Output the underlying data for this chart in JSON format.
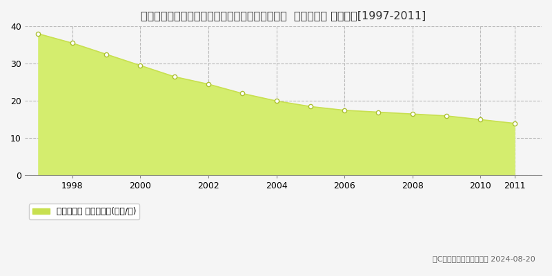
{
  "title": "埼玉県比企郡川島町大字伊草字上宿並１１番３外  基準地価格 地価推移[1997-2011]",
  "years": [
    1997,
    1998,
    1999,
    2000,
    2001,
    2002,
    2003,
    2004,
    2005,
    2006,
    2007,
    2008,
    2009,
    2010,
    2011
  ],
  "values": [
    38.0,
    35.5,
    32.5,
    29.5,
    26.5,
    24.5,
    22.0,
    20.0,
    18.5,
    17.5,
    17.0,
    16.5,
    16.0,
    15.0,
    14.0
  ],
  "ylim": [
    0,
    40
  ],
  "yticks": [
    0,
    10,
    20,
    30,
    40
  ],
  "fill_color": "#d4ed6e",
  "line_color": "#c8e050",
  "marker_facecolor": "#ffffff",
  "marker_edgecolor": "#aabf30",
  "bg_color": "#f5f5f5",
  "plot_bg_color": "#f5f5f5",
  "grid_color": "#bbbbbb",
  "legend_label": "基準地価格 平均坪単価(万円/坪)",
  "legend_color": "#c8e050",
  "copyright_text": "（C）土地価格ドットコム 2024-08-20",
  "title_fontsize": 11.5,
  "axis_fontsize": 9,
  "legend_fontsize": 9
}
